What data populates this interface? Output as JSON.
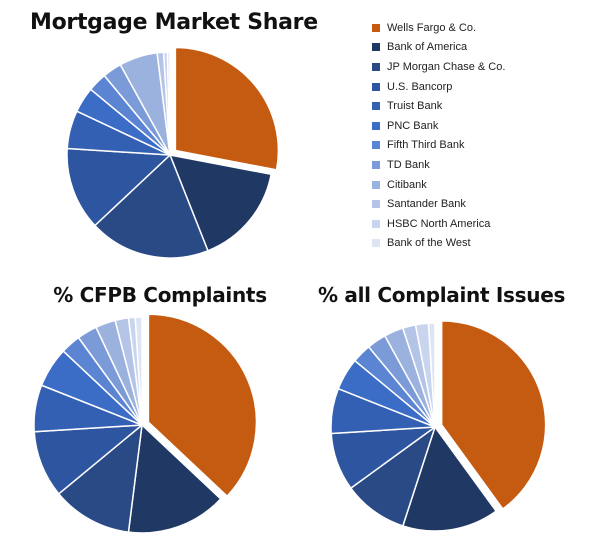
{
  "legend": {
    "placement": "top-right",
    "items": [
      {
        "label": "Wells Fargo & Co.",
        "color": "#c55a11"
      },
      {
        "label": "Bank of America",
        "color": "#203864"
      },
      {
        "label": "JP Morgan Chase & Co.",
        "color": "#2a4a86"
      },
      {
        "label": "U.S. Bancorp",
        "color": "#2e55a0"
      },
      {
        "label": "Truist Bank",
        "color": "#3460b4"
      },
      {
        "label": "PNC Bank",
        "color": "#3b6dc7"
      },
      {
        "label": "Fifth Third Bank",
        "color": "#5b84d2"
      },
      {
        "label": "TD Bank",
        "color": "#7b9bd8"
      },
      {
        "label": "Citibank",
        "color": "#9cb2de"
      },
      {
        "label": "Santander Bank",
        "color": "#b4c4e6"
      },
      {
        "label": "HSBC North America",
        "color": "#c9d5ef"
      },
      {
        "label": "Bank of the West",
        "color": "#dde5f5"
      }
    ]
  },
  "chart_data": [
    {
      "type": "pie",
      "title": "Mortgage Market Share",
      "categories": [
        "Wells Fargo & Co.",
        "Bank of America",
        "JP Morgan Chase & Co.",
        "U.S. Bancorp",
        "Truist Bank",
        "PNC Bank",
        "Fifth Third Bank",
        "TD Bank",
        "Citibank",
        "Santander Bank",
        "HSBC North America",
        "Bank of the West"
      ],
      "values": [
        28,
        16,
        19,
        13,
        6,
        4,
        3,
        3,
        6,
        1,
        0.6,
        0.4
      ],
      "exploded": "Wells Fargo & Co."
    },
    {
      "type": "pie",
      "title": "% CFPB Complaints",
      "categories": [
        "Wells Fargo & Co.",
        "Bank of America",
        "JP Morgan Chase & Co.",
        "U.S. Bancorp",
        "Truist Bank",
        "PNC Bank",
        "Fifth Third Bank",
        "TD Bank",
        "Citibank",
        "Santander Bank",
        "HSBC North America",
        "Bank of the West"
      ],
      "values": [
        37,
        15,
        12,
        10,
        7,
        6,
        3,
        3,
        3,
        2,
        1,
        1
      ],
      "exploded": "Wells Fargo & Co."
    },
    {
      "type": "pie",
      "title": "% all Complaint Issues",
      "categories": [
        "Wells Fargo & Co.",
        "Bank of America",
        "JP Morgan Chase & Co.",
        "U.S. Bancorp",
        "Truist Bank",
        "PNC Bank",
        "Fifth Third Bank",
        "TD Bank",
        "Citibank",
        "Santander Bank",
        "HSBC North America",
        "Bank of the West"
      ],
      "values": [
        40,
        15,
        10,
        9,
        7,
        5,
        3,
        3,
        3,
        2,
        2,
        1
      ],
      "exploded": "Wells Fargo & Co."
    }
  ]
}
